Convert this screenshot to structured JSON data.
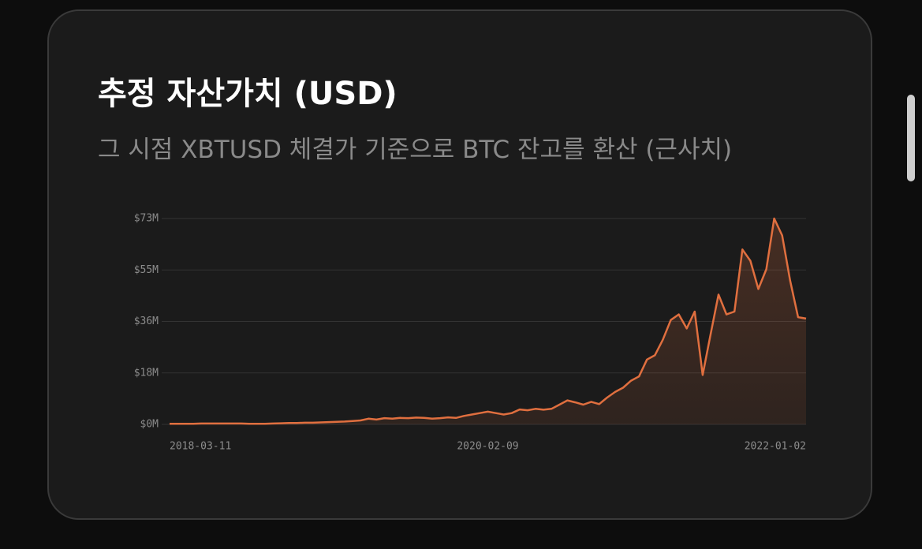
{
  "chart_data": {
    "type": "area",
    "title": "추정 자산가치 (USD)",
    "subtitle": "그 시점 XBTUSD 체결가 기준으로 BTC 잔고를 환산 (근사치)",
    "categories": [
      "2018-03-11",
      null,
      null,
      null,
      null,
      null,
      null,
      null,
      null,
      null,
      null,
      null,
      null,
      null,
      null,
      null,
      null,
      null,
      null,
      null,
      null,
      null,
      null,
      null,
      null,
      null,
      null,
      null,
      null,
      null,
      null,
      null,
      null,
      null,
      null,
      null,
      null,
      null,
      null,
      null,
      "2020-02-09",
      null,
      null,
      null,
      null,
      null,
      null,
      null,
      null,
      null,
      null,
      null,
      null,
      null,
      null,
      null,
      null,
      null,
      null,
      null,
      null,
      null,
      null,
      null,
      null,
      null,
      null,
      null,
      null,
      null,
      null,
      null,
      null,
      null,
      null,
      null,
      null,
      null,
      null,
      null,
      "2022-01-02"
    ],
    "values": [
      0.2,
      0.2,
      0.2,
      0.2,
      0.3,
      0.3,
      0.3,
      0.3,
      0.3,
      0.3,
      0.2,
      0.2,
      0.2,
      0.3,
      0.4,
      0.5,
      0.5,
      0.6,
      0.6,
      0.7,
      0.8,
      0.9,
      1.0,
      1.2,
      1.4,
      2.0,
      1.7,
      2.2,
      2.0,
      2.3,
      2.2,
      2.4,
      2.3,
      2.0,
      2.2,
      2.5,
      2.3,
      3.0,
      3.5,
      4.0,
      4.5,
      4.0,
      3.5,
      4.0,
      5.3,
      5.0,
      5.5,
      5.2,
      5.5,
      7.0,
      8.5,
      7.8,
      7.0,
      8.0,
      7.2,
      9.5,
      11.5,
      13.0,
      15.5,
      17.0,
      23.0,
      24.5,
      30.0,
      37.0,
      39.0,
      34.0,
      40.0,
      17.5,
      32.0,
      46.0,
      39.0,
      40.0,
      62.0,
      58.0,
      48.0,
      55.0,
      73.0,
      67.0,
      51.0,
      38.0,
      37.5
    ],
    "color": "#e06f3f",
    "ylim": [
      0,
      73
    ],
    "yticks": [
      {
        "value": 0,
        "label": "$0M"
      },
      {
        "value": 18.25,
        "label": "$18M"
      },
      {
        "value": 36.5,
        "label": "$36M"
      },
      {
        "value": 54.75,
        "label": "$55M"
      },
      {
        "value": 73,
        "label": "$73M"
      }
    ],
    "grid": true
  }
}
